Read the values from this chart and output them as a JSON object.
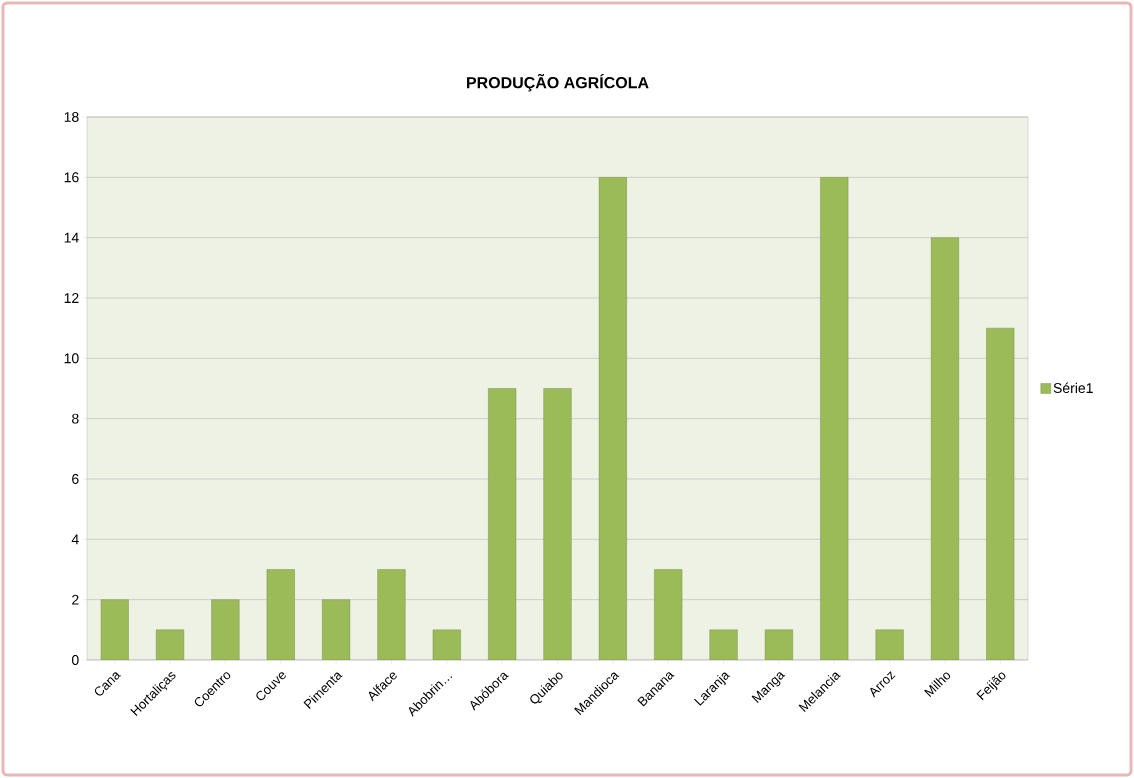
{
  "chart_data": {
    "type": "bar",
    "title": "PRODUÇÃO AGRÍCOLA",
    "categories": [
      "Cana",
      "Hortaliças",
      "Coentro",
      "Couve",
      "Pimenta",
      "Alface",
      "Abobrin…",
      "Abóbora",
      "Quiabo",
      "Mandioca",
      "Banana",
      "Laranja",
      "Manga",
      "Melancia",
      "Arroz",
      "Milho",
      "Feijão"
    ],
    "series": [
      {
        "name": "Série1",
        "color": "#9bbb59",
        "values": [
          2,
          1,
          2,
          3,
          2,
          3,
          1,
          9,
          9,
          16,
          3,
          1,
          1,
          16,
          1,
          14,
          11
        ]
      }
    ],
    "ylim": [
      0,
      18
    ],
    "yticks": [
      0,
      2,
      4,
      6,
      8,
      10,
      12,
      14,
      16,
      18
    ],
    "grid": "y",
    "legend": "right"
  }
}
